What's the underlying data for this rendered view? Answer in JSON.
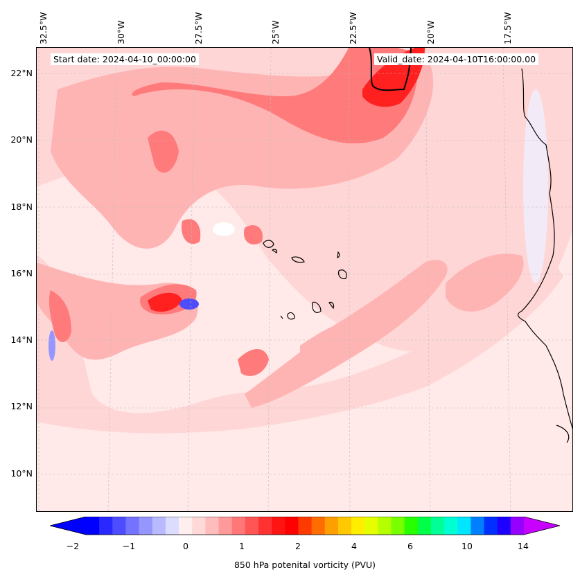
{
  "map": {
    "start_date": "Start date: 2024-04-10_00:00:00",
    "valid_date": "Valid_date: 2024-04-10T16:00:00.00",
    "lon_labels": [
      "32.5°W",
      "30°W",
      "27.5°W",
      "25°W",
      "22.5°W",
      "20°W",
      "17.5°W"
    ],
    "lat_labels": [
      "22°N",
      "20°N",
      "18°N",
      "16°N",
      "14°N",
      "12°N",
      "10°N"
    ],
    "field": "850 hPa potential vorticity",
    "projection_extent": {
      "lon_west": -33.0,
      "lon_east": -15.0,
      "lat_south": 8.9,
      "lat_north": 22.8
    }
  },
  "colorbar": {
    "label": "850 hPa potenital vorticity (PVU)",
    "tick_labels": [
      "-2",
      "-1",
      "0",
      "1",
      "2",
      "4",
      "6",
      "10",
      "14"
    ],
    "colors": [
      "#0000ff",
      "#2828ff",
      "#4d4dff",
      "#7373ff",
      "#9696ff",
      "#b9b9ff",
      "#dcdcff",
      "#ffeeee",
      "#ffd8d8",
      "#ffbcbc",
      "#ff9a9a",
      "#ff7777",
      "#ff5555",
      "#ff3232",
      "#ff1414",
      "#ff0000",
      "#ff3a00",
      "#ff6c00",
      "#ff9e00",
      "#ffc800",
      "#ffee00",
      "#e6ff00",
      "#b4ff00",
      "#78ff00",
      "#28ff00",
      "#00ff46",
      "#00ff96",
      "#00ffd2",
      "#00e6ff",
      "#0080ff",
      "#0030ff",
      "#1e00ff",
      "#9600ff"
    ],
    "extend_min_color": "#0000ff",
    "extend_max_color": "#c800ff"
  },
  "colors": {
    "background_field": "#ffe9e9",
    "coastline": "#000000",
    "gridline": "#bbbbbb"
  }
}
